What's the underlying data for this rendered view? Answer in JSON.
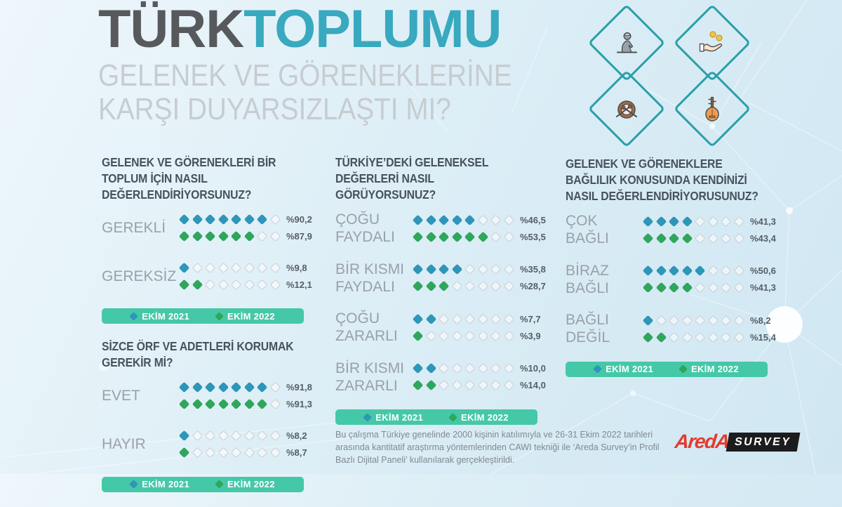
{
  "diamonds_per_row": 8,
  "title": {
    "part1": "TÜRK",
    "part2": "TOPLUMU"
  },
  "subtitle_line1": "GELENEK VE GÖRENEKLERİNE",
  "subtitle_line2": "KARŞI DUYARSIZLAŞTI MI?",
  "colors": {
    "title_dark": "#57595C",
    "title_teal": "#38A9BE",
    "subtitle_gray": "#C7CCD0",
    "question_text": "#47525D",
    "answer_label": "#9AA1A8",
    "percent_text": "#555E66",
    "legend_bar": "#45C8A7",
    "diamond_2021_blue": "#2D96B9",
    "diamond_2022_green": "#2FA65C",
    "empty_diamond_border": "#C9CED3",
    "icon_diamond_outline": "#2B9FA8"
  },
  "legend": {
    "items": [
      {
        "label": "EKİM 2021",
        "color": "#2D96B9"
      },
      {
        "label": "EKİM 2022",
        "color": "#2FA65C"
      }
    ]
  },
  "icons": [
    {
      "name": "praying-person-icon"
    },
    {
      "name": "hand-giving-coins-icon"
    },
    {
      "name": "davul-drum-icon"
    },
    {
      "name": "baglama-lute-icon"
    }
  ],
  "sections": [
    {
      "question_lines": [
        "GELENEK VE GÖRENEKLERİ BİR",
        "TOPLUM İÇİN NASIL",
        "DEĞERLENDİRİYORSUNUZ?"
      ],
      "items": [
        {
          "label_lines": [
            "GEREKLİ"
          ],
          "rows": [
            {
              "year": "EKİM 2021",
              "filled": 7,
              "value": "%90,2"
            },
            {
              "year": "EKİM 2022",
              "filled": 6,
              "value": "%87,9"
            }
          ]
        },
        {
          "label_lines": [
            "GEREKSİZ"
          ],
          "rows": [
            {
              "year": "EKİM 2021",
              "filled": 1,
              "value": "%9,8"
            },
            {
              "year": "EKİM 2022",
              "filled": 2,
              "value": "%12,1"
            }
          ]
        }
      ]
    },
    {
      "question_lines": [
        "SİZCE ÖRF VE ADETLERİ KORUMAK",
        "GEREKİR Mİ?"
      ],
      "items": [
        {
          "label_lines": [
            "EVET"
          ],
          "rows": [
            {
              "year": "EKİM 2021",
              "filled": 7,
              "value": "%91,8"
            },
            {
              "year": "EKİM 2022",
              "filled": 7,
              "value": "%91,3"
            }
          ]
        },
        {
          "label_lines": [
            "HAYIR"
          ],
          "rows": [
            {
              "year": "EKİM 2021",
              "filled": 1,
              "value": "%8,2"
            },
            {
              "year": "EKİM 2022",
              "filled": 1,
              "value": "%8,7"
            }
          ]
        }
      ]
    },
    {
      "question_lines": [
        "TÜRKİYE’DEKİ GELENEKSEL",
        "DEĞERLERİ NASIL",
        "GÖRÜYORSUNUZ?"
      ],
      "items": [
        {
          "label_lines": [
            "ÇOĞU",
            "FAYDALI"
          ],
          "rows": [
            {
              "year": "EKİM 2021",
              "filled": 5,
              "value": "%46,5"
            },
            {
              "year": "EKİM 2022",
              "filled": 6,
              "value": "%53,5"
            }
          ]
        },
        {
          "label_lines": [
            "BİR KISMI",
            "FAYDALI"
          ],
          "rows": [
            {
              "year": "EKİM 2021",
              "filled": 4,
              "value": "%35,8"
            },
            {
              "year": "EKİM 2022",
              "filled": 3,
              "value": "%28,7"
            }
          ]
        },
        {
          "label_lines": [
            "ÇOĞU",
            "ZARARLI"
          ],
          "rows": [
            {
              "year": "EKİM 2021",
              "filled": 2,
              "value": "%7,7"
            },
            {
              "year": "EKİM 2022",
              "filled": 1,
              "value": "%3,9"
            }
          ]
        },
        {
          "label_lines": [
            "BİR KISMI",
            "ZARARLI"
          ],
          "rows": [
            {
              "year": "EKİM 2021",
              "filled": 2,
              "value": "%10,0"
            },
            {
              "year": "EKİM 2022",
              "filled": 2,
              "value": "%14,0"
            }
          ]
        }
      ]
    },
    {
      "question_lines": [
        "GELENEK VE GÖRENEKLERE",
        "BAĞLILIK KONUSUNDA KENDİNİZİ",
        "NASIL DEĞERLENDİRİYORUSUNUZ?"
      ],
      "items": [
        {
          "label_lines": [
            "ÇOK",
            "BAĞLI"
          ],
          "rows": [
            {
              "year": "EKİM 2021",
              "filled": 4,
              "value": "%41,3"
            },
            {
              "year": "EKİM 2022",
              "filled": 4,
              "value": "%43,4"
            }
          ]
        },
        {
          "label_lines": [
            "BİRAZ",
            "BAĞLI"
          ],
          "rows": [
            {
              "year": "EKİM 2021",
              "filled": 5,
              "value": "%50,6"
            },
            {
              "year": "EKİM 2022",
              "filled": 4,
              "value": "%41,3"
            }
          ]
        },
        {
          "label_lines": [
            "BAĞLI",
            "DEĞİL"
          ],
          "rows": [
            {
              "year": "EKİM 2021",
              "filled": 1,
              "value": "%8,2"
            },
            {
              "year": "EKİM 2022",
              "filled": 2,
              "value": "%15,4"
            }
          ]
        }
      ]
    }
  ],
  "footnote": "Bu çalışma Türkiye genelinde 2000 kişinin katılımıyla ve 26-31 Ekim 2022 tarihleri arasında kantitatif araştırma yöntemlerinden CAWI tekniği ile ‘Areda Survey’in Profil Bazlı Dijital Paneli’ kullanılarak gerçekleştirildi.",
  "logo": {
    "brand": "AredA",
    "suffix": "SURVEY"
  },
  "chart_data": [
    {
      "type": "bar",
      "title": "GELENEK VE GÖRENEKLERİ BİR TOPLUM İÇİN NASIL DEĞERLENDİRİYORSUNUZ?",
      "categories": [
        "GEREKLİ",
        "GEREKSİZ"
      ],
      "series": [
        {
          "name": "EKİM 2021",
          "values": [
            90.2,
            9.8
          ]
        },
        {
          "name": "EKİM 2022",
          "values": [
            87.9,
            12.1
          ]
        }
      ],
      "unit": "percent",
      "ylim": [
        0,
        100
      ],
      "legend_position": "bottom",
      "pictogram_icons_per_row": 8
    },
    {
      "type": "bar",
      "title": "SİZCE ÖRF VE ADETLERİ KORUMAK GEREKİR Mİ?",
      "categories": [
        "EVET",
        "HAYIR"
      ],
      "series": [
        {
          "name": "EKİM 2021",
          "values": [
            91.8,
            8.2
          ]
        },
        {
          "name": "EKİM 2022",
          "values": [
            91.3,
            8.7
          ]
        }
      ],
      "unit": "percent",
      "ylim": [
        0,
        100
      ],
      "legend_position": "bottom",
      "pictogram_icons_per_row": 8
    },
    {
      "type": "bar",
      "title": "TÜRKİYE’DEKİ GELENEKSEL DEĞERLERİ NASIL GÖRÜYORSUNUZ?",
      "categories": [
        "ÇOĞU FAYDALI",
        "BİR KISMI FAYDALI",
        "ÇOĞU ZARARLI",
        "BİR KISMI ZARARLI"
      ],
      "series": [
        {
          "name": "EKİM 2021",
          "values": [
            46.5,
            35.8,
            7.7,
            10.0
          ]
        },
        {
          "name": "EKİM 2022",
          "values": [
            53.5,
            28.7,
            3.9,
            14.0
          ]
        }
      ],
      "unit": "percent",
      "ylim": [
        0,
        100
      ],
      "legend_position": "bottom",
      "pictogram_icons_per_row": 8
    },
    {
      "type": "bar",
      "title": "GELENEK VE GÖRENEKLERE BAĞLILIK KONUSUNDA KENDİNİZİ NASIL DEĞERLENDİRİYORUSUNUZ?",
      "categories": [
        "ÇOK BAĞLI",
        "BİRAZ BAĞLI",
        "BAĞLI DEĞİL"
      ],
      "series": [
        {
          "name": "EKİM 2021",
          "values": [
            41.3,
            50.6,
            8.2
          ]
        },
        {
          "name": "EKİM 2022",
          "values": [
            43.4,
            41.3,
            15.4
          ]
        }
      ],
      "unit": "percent",
      "ylim": [
        0,
        100
      ],
      "legend_position": "bottom",
      "pictogram_icons_per_row": 8
    }
  ]
}
